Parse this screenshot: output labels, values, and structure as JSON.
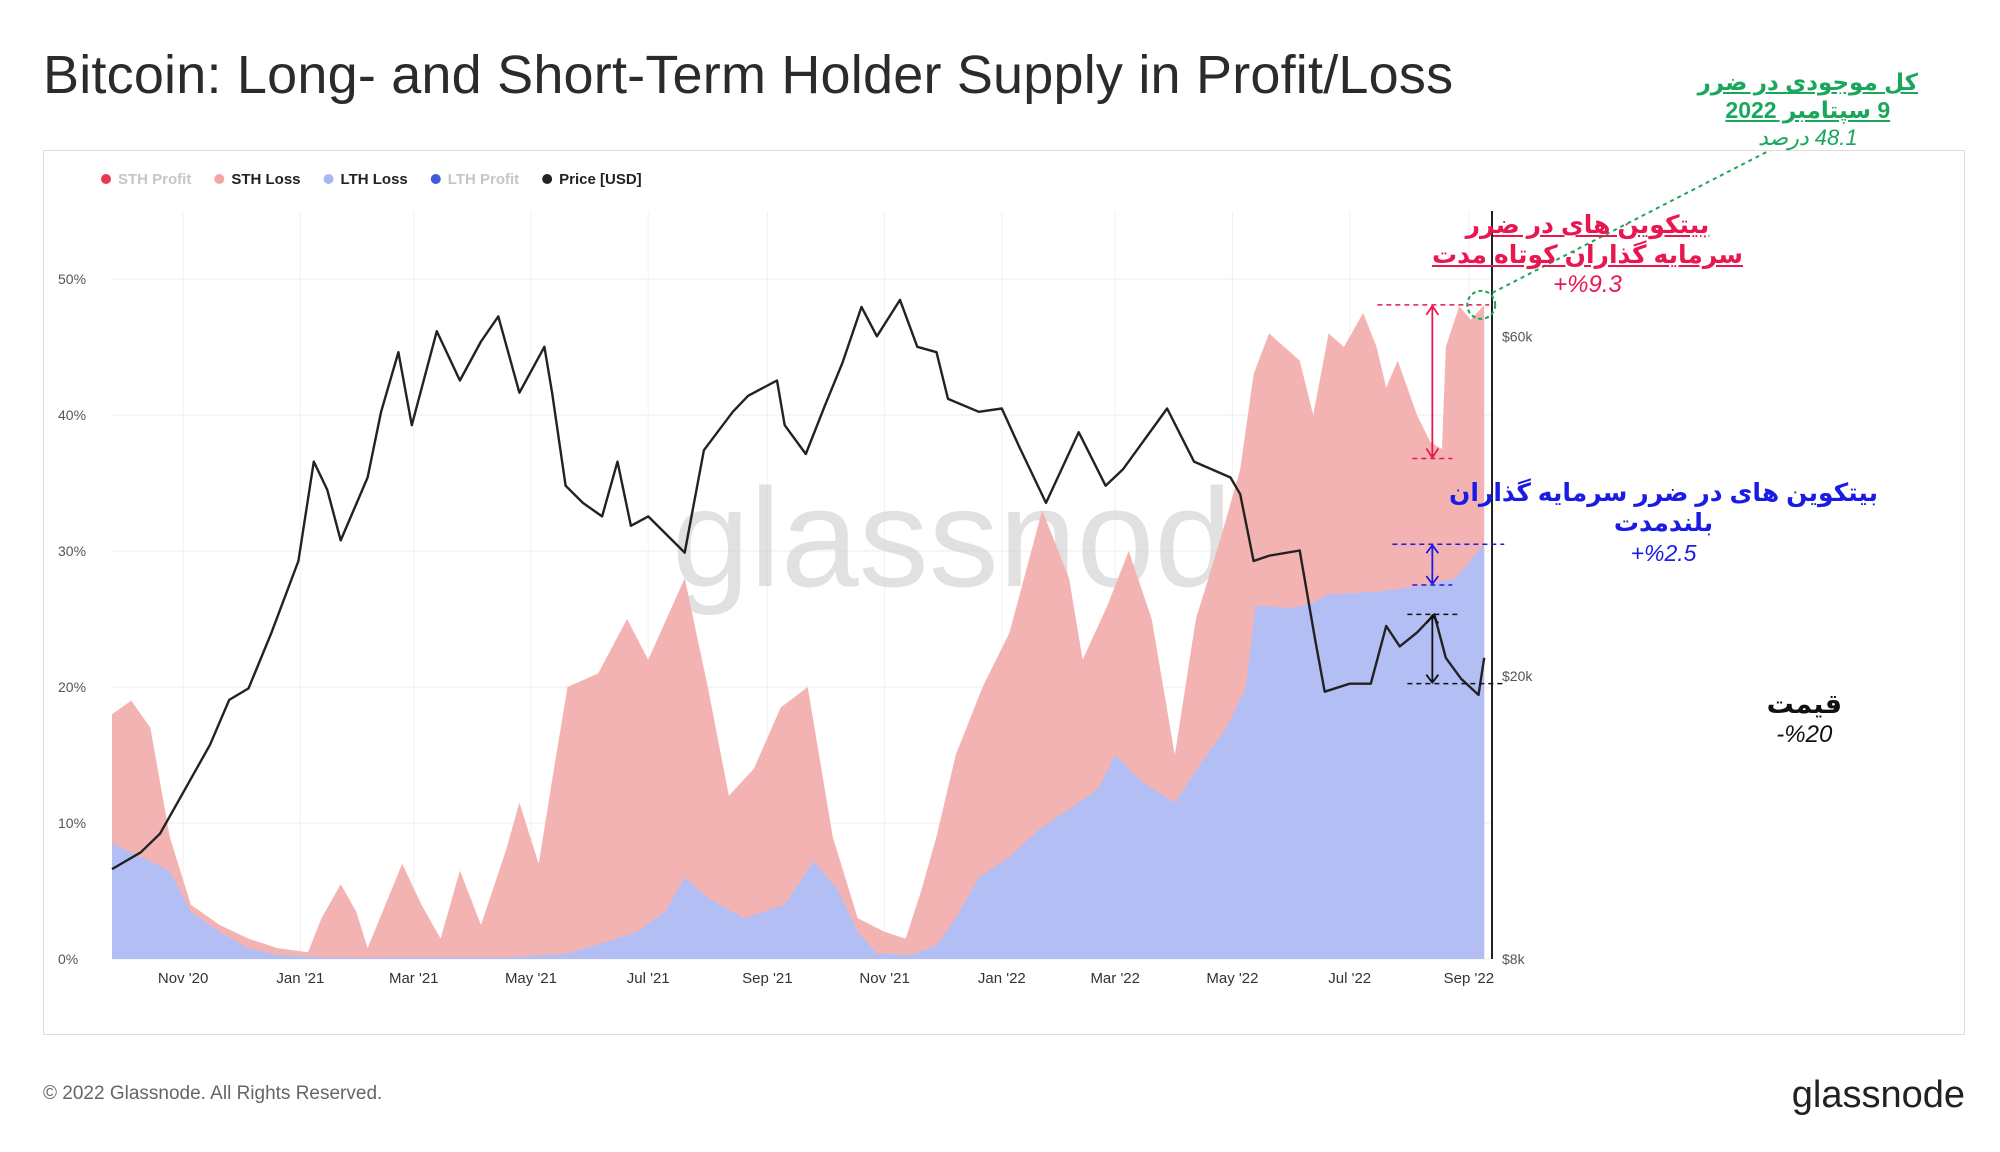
{
  "header": {
    "title": "Bitcoin: Long- and Short-Term Holder Supply in Profit/Loss"
  },
  "footer": {
    "copyright": "© 2022 Glassnode. All Rights Reserved.",
    "brand": "glassnode"
  },
  "watermark": "glassnode",
  "annotations": {
    "total_loss": {
      "line1": "کل موجودی در ضرر",
      "line2": "9 سپتامبر 2022",
      "line3": "48.1 درصد",
      "color": "#1aa65b"
    },
    "sth": {
      "line1": "بیتکوین های در ضرر",
      "line2": "سرمایه گذاران کوتاه مدت",
      "line3": "%9.3+",
      "color": "#e8174f"
    },
    "lth": {
      "line1": "بیتکوین های در ضرر سرمایه گذاران",
      "line2": "بلندمدت",
      "line3": "%2.5+",
      "color": "#1b1be6"
    },
    "price": {
      "line1": "قیمت",
      "line2": "%20-",
      "color": "#111111"
    }
  },
  "chart_data": {
    "type": "area",
    "x_range": [
      "2020-09-25",
      "2022-09-12"
    ],
    "ylim_left": [
      0,
      55
    ],
    "y_left_ticks": [
      {
        "value": 0,
        "label": "0%"
      },
      {
        "value": 10,
        "label": "10%"
      },
      {
        "value": 20,
        "label": "20%"
      },
      {
        "value": 30,
        "label": "30%"
      },
      {
        "value": 40,
        "label": "40%"
      },
      {
        "value": 50,
        "label": "50%"
      }
    ],
    "y_right_scale": "log",
    "ylim_right": [
      8000,
      90000
    ],
    "y_right_ticks": [
      {
        "value": 8000,
        "label": "$8k"
      },
      {
        "value": 20000,
        "label": "$20k"
      },
      {
        "value": 60000,
        "label": "$60k"
      }
    ],
    "x_ticks": [
      {
        "date": "2020-11-01",
        "label": "Nov '20"
      },
      {
        "date": "2021-01-01",
        "label": "Jan '21"
      },
      {
        "date": "2021-03-01",
        "label": "Mar '21"
      },
      {
        "date": "2021-05-01",
        "label": "May '21"
      },
      {
        "date": "2021-07-01",
        "label": "Jul '21"
      },
      {
        "date": "2021-09-01",
        "label": "Sep '21"
      },
      {
        "date": "2021-11-01",
        "label": "Nov '21"
      },
      {
        "date": "2022-01-01",
        "label": "Jan '22"
      },
      {
        "date": "2022-03-01",
        "label": "Mar '22"
      },
      {
        "date": "2022-05-01",
        "label": "May '22"
      },
      {
        "date": "2022-07-01",
        "label": "Jul '22"
      },
      {
        "date": "2022-09-01",
        "label": "Sep '22"
      }
    ],
    "grid": true,
    "legend_position": "top-left",
    "legend": [
      {
        "name": "STH Profit",
        "color": "#e8394f",
        "active": false
      },
      {
        "name": "STH Loss",
        "color": "#f4a6a6",
        "active": true
      },
      {
        "name": "LTH Loss",
        "color": "#a9b7f4",
        "active": true
      },
      {
        "name": "LTH Profit",
        "color": "#3e5bdc",
        "active": false
      },
      {
        "name": "Price [USD]",
        "color": "#222222",
        "active": true
      }
    ],
    "series": [
      {
        "name": "LTH Loss",
        "color": "#b3bff4",
        "points": [
          [
            "2020-09-25",
            8.5
          ],
          [
            "2020-10-10",
            7.5
          ],
          [
            "2020-10-25",
            6.5
          ],
          [
            "2020-11-05",
            3.5
          ],
          [
            "2020-11-20",
            2.0
          ],
          [
            "2020-12-05",
            0.8
          ],
          [
            "2020-12-20",
            0.3
          ],
          [
            "2021-01-15",
            0.1
          ],
          [
            "2021-03-01",
            0.1
          ],
          [
            "2021-04-15",
            0.1
          ],
          [
            "2021-05-20",
            0.4
          ],
          [
            "2021-06-10",
            1.3
          ],
          [
            "2021-06-25",
            2.0
          ],
          [
            "2021-07-10",
            3.5
          ],
          [
            "2021-07-20",
            6.0
          ],
          [
            "2021-08-01",
            4.5
          ],
          [
            "2021-08-20",
            3.0
          ],
          [
            "2021-09-10",
            4.0
          ],
          [
            "2021-09-25",
            7.2
          ],
          [
            "2021-10-08",
            5.0
          ],
          [
            "2021-10-18",
            2.0
          ],
          [
            "2021-10-28",
            0.4
          ],
          [
            "2021-11-15",
            0.3
          ],
          [
            "2021-11-28",
            1.0
          ],
          [
            "2021-12-08",
            3.0
          ],
          [
            "2021-12-20",
            6.0
          ],
          [
            "2022-01-05",
            7.5
          ],
          [
            "2022-01-20",
            9.5
          ],
          [
            "2022-02-05",
            11.0
          ],
          [
            "2022-02-20",
            12.5
          ],
          [
            "2022-03-01",
            15.0
          ],
          [
            "2022-03-15",
            13.0
          ],
          [
            "2022-04-01",
            11.5
          ],
          [
            "2022-04-15",
            14.5
          ],
          [
            "2022-04-28",
            17.0
          ],
          [
            "2022-05-08",
            20.0
          ],
          [
            "2022-05-13",
            26.0
          ],
          [
            "2022-06-01",
            25.8
          ],
          [
            "2022-06-12",
            26.2
          ],
          [
            "2022-06-20",
            26.8
          ],
          [
            "2022-07-15",
            27.0
          ],
          [
            "2022-08-10",
            27.5
          ],
          [
            "2022-08-25",
            28.0
          ],
          [
            "2022-09-09",
            30.5
          ]
        ]
      },
      {
        "name": "STH Loss",
        "color": "#f4b3b3",
        "points": [
          [
            "2020-09-25",
            18.0
          ],
          [
            "2020-10-05",
            19.0
          ],
          [
            "2020-10-15",
            17.0
          ],
          [
            "2020-10-25",
            9.0
          ],
          [
            "2020-11-05",
            4.0
          ],
          [
            "2020-11-20",
            2.5
          ],
          [
            "2020-12-05",
            1.5
          ],
          [
            "2020-12-20",
            0.8
          ],
          [
            "2021-01-05",
            0.5
          ],
          [
            "2021-01-12",
            3.0
          ],
          [
            "2021-01-22",
            5.5
          ],
          [
            "2021-01-30",
            3.5
          ],
          [
            "2021-02-05",
            0.8
          ],
          [
            "2021-02-23",
            7.0
          ],
          [
            "2021-03-05",
            4.0
          ],
          [
            "2021-03-15",
            1.5
          ],
          [
            "2021-03-25",
            6.5
          ],
          [
            "2021-04-05",
            2.5
          ],
          [
            "2021-04-18",
            8.0
          ],
          [
            "2021-04-25",
            11.5
          ],
          [
            "2021-05-05",
            7.0
          ],
          [
            "2021-05-13",
            14.0
          ],
          [
            "2021-05-20",
            20.0
          ],
          [
            "2021-06-05",
            21.0
          ],
          [
            "2021-06-20",
            25.0
          ],
          [
            "2021-07-01",
            22.0
          ],
          [
            "2021-07-20",
            28.0
          ],
          [
            "2021-08-01",
            20.0
          ],
          [
            "2021-08-12",
            12.0
          ],
          [
            "2021-08-25",
            14.0
          ],
          [
            "2021-09-08",
            18.5
          ],
          [
            "2021-09-22",
            20.0
          ],
          [
            "2021-10-05",
            9.0
          ],
          [
            "2021-10-18",
            3.0
          ],
          [
            "2021-11-01",
            2.0
          ],
          [
            "2021-11-12",
            1.5
          ],
          [
            "2021-11-20",
            5.0
          ],
          [
            "2021-11-28",
            9.0
          ],
          [
            "2021-12-08",
            15.0
          ],
          [
            "2021-12-22",
            20.0
          ],
          [
            "2022-01-05",
            24.0
          ],
          [
            "2022-01-22",
            33.0
          ],
          [
            "2022-02-05",
            28.0
          ],
          [
            "2022-02-12",
            22.0
          ],
          [
            "2022-02-25",
            26.0
          ],
          [
            "2022-03-08",
            30.0
          ],
          [
            "2022-03-20",
            25.0
          ],
          [
            "2022-04-01",
            15.0
          ],
          [
            "2022-04-12",
            25.0
          ],
          [
            "2022-04-25",
            31.0
          ],
          [
            "2022-05-05",
            36.0
          ],
          [
            "2022-05-12",
            43.0
          ],
          [
            "2022-05-20",
            46.0
          ],
          [
            "2022-05-28",
            45.0
          ],
          [
            "2022-06-05",
            44.0
          ],
          [
            "2022-06-12",
            40.0
          ],
          [
            "2022-06-20",
            46.0
          ],
          [
            "2022-06-28",
            45.0
          ],
          [
            "2022-07-08",
            47.5
          ],
          [
            "2022-07-15",
            45.0
          ],
          [
            "2022-07-20",
            42.0
          ],
          [
            "2022-07-26",
            44.0
          ],
          [
            "2022-08-05",
            40.0
          ],
          [
            "2022-08-12",
            38.0
          ],
          [
            "2022-08-18",
            37.5
          ],
          [
            "2022-08-20",
            45.0
          ],
          [
            "2022-08-27",
            48.0
          ],
          [
            "2022-09-02",
            47.0
          ],
          [
            "2022-09-09",
            48.1
          ]
        ]
      },
      {
        "name": "Price [USD]",
        "color": "#222222",
        "points": [
          [
            "2020-09-25",
            10700
          ],
          [
            "2020-10-10",
            11300
          ],
          [
            "2020-10-20",
            12000
          ],
          [
            "2020-11-01",
            13700
          ],
          [
            "2020-11-15",
            16000
          ],
          [
            "2020-11-25",
            18500
          ],
          [
            "2020-12-05",
            19200
          ],
          [
            "2020-12-17",
            23000
          ],
          [
            "2020-12-31",
            29000
          ],
          [
            "2021-01-08",
            40000
          ],
          [
            "2021-01-15",
            36500
          ],
          [
            "2021-01-22",
            31000
          ],
          [
            "2021-02-05",
            38000
          ],
          [
            "2021-02-12",
            47000
          ],
          [
            "2021-02-21",
            57000
          ],
          [
            "2021-02-28",
            45000
          ],
          [
            "2021-03-13",
            61000
          ],
          [
            "2021-03-25",
            52000
          ],
          [
            "2021-04-05",
            59000
          ],
          [
            "2021-04-14",
            64000
          ],
          [
            "2021-04-25",
            50000
          ],
          [
            "2021-05-08",
            58000
          ],
          [
            "2021-05-12",
            50000
          ],
          [
            "2021-05-19",
            37000
          ],
          [
            "2021-05-28",
            35000
          ],
          [
            "2021-06-07",
            33500
          ],
          [
            "2021-06-15",
            40000
          ],
          [
            "2021-06-22",
            32500
          ],
          [
            "2021-07-01",
            33500
          ],
          [
            "2021-07-20",
            29800
          ],
          [
            "2021-07-30",
            41500
          ],
          [
            "2021-08-14",
            47000
          ],
          [
            "2021-08-22",
            49500
          ],
          [
            "2021-09-06",
            52000
          ],
          [
            "2021-09-10",
            45000
          ],
          [
            "2021-09-21",
            41000
          ],
          [
            "2021-10-01",
            48000
          ],
          [
            "2021-10-10",
            55000
          ],
          [
            "2021-10-20",
            66000
          ],
          [
            "2021-10-28",
            60000
          ],
          [
            "2021-11-09",
            67500
          ],
          [
            "2021-11-18",
            58000
          ],
          [
            "2021-11-28",
            57000
          ],
          [
            "2021-12-04",
            49000
          ],
          [
            "2021-12-20",
            47000
          ],
          [
            "2022-01-01",
            47500
          ],
          [
            "2022-01-10",
            42000
          ],
          [
            "2022-01-24",
            35000
          ],
          [
            "2022-02-10",
            44000
          ],
          [
            "2022-02-24",
            37000
          ],
          [
            "2022-03-05",
            39000
          ],
          [
            "2022-03-28",
            47500
          ],
          [
            "2022-04-11",
            40000
          ],
          [
            "2022-04-30",
            38000
          ],
          [
            "2022-05-05",
            36000
          ],
          [
            "2022-05-12",
            29000
          ],
          [
            "2022-05-20",
            29500
          ],
          [
            "2022-06-05",
            30000
          ],
          [
            "2022-06-13",
            22500
          ],
          [
            "2022-06-18",
            19000
          ],
          [
            "2022-07-01",
            19500
          ],
          [
            "2022-07-12",
            19500
          ],
          [
            "2022-07-20",
            23500
          ],
          [
            "2022-07-27",
            22000
          ],
          [
            "2022-08-05",
            23000
          ],
          [
            "2022-08-14",
            24400
          ],
          [
            "2022-08-20",
            21200
          ],
          [
            "2022-08-28",
            19800
          ],
          [
            "2022-09-06",
            18800
          ],
          [
            "2022-09-09",
            21200
          ]
        ]
      }
    ]
  }
}
